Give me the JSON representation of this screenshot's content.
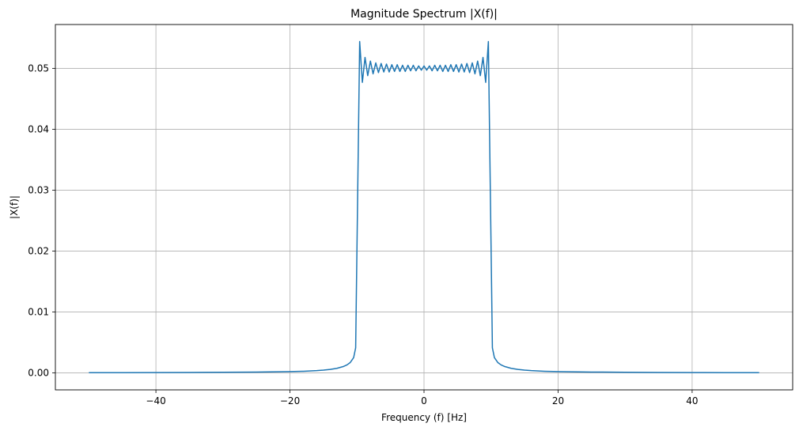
{
  "chart_data": {
    "type": "line",
    "title": "Magnitude Spectrum |X(f)|",
    "xlabel": "Frequency (f) [Hz]",
    "ylabel": "|X(f)|",
    "xlim": [
      -55,
      55
    ],
    "ylim": [
      -0.0028,
      0.0572
    ],
    "xticks": [
      -40,
      -20,
      0,
      20,
      40
    ],
    "xtick_labels": [
      "−40",
      "−20",
      "0",
      "20",
      "40"
    ],
    "yticks": [
      0.0,
      0.01,
      0.02,
      0.03,
      0.04,
      0.05
    ],
    "ytick_labels": [
      "0.00",
      "0.01",
      "0.02",
      "0.03",
      "0.04",
      "0.05"
    ],
    "grid": true,
    "series": [
      {
        "color": "#1f77b4",
        "x": [
          -50,
          -45,
          -40,
          -35,
          -30,
          -25,
          -20,
          -18,
          -16,
          -15,
          -14,
          -13,
          -12,
          -11.5,
          -11,
          -10.5,
          -10.2,
          -9.6,
          -9.2,
          -8.8,
          -8.4,
          -8.0,
          -7.6,
          -7.2,
          -6.8,
          -6.4,
          -6.0,
          -5.6,
          -5.2,
          -4.8,
          -4.4,
          -4.0,
          -3.6,
          -3.2,
          -2.8,
          -2.4,
          -2.0,
          -1.6,
          -1.2,
          -0.8,
          -0.4,
          0.0,
          0.4,
          0.8,
          1.2,
          1.6,
          2.0,
          2.4,
          2.8,
          3.2,
          3.6,
          4.0,
          4.4,
          4.8,
          5.2,
          5.6,
          6.0,
          6.4,
          6.8,
          7.2,
          7.6,
          8.0,
          8.4,
          8.8,
          9.2,
          9.6,
          10.2,
          10.5,
          11,
          11.5,
          12,
          13,
          14,
          15,
          16,
          18,
          20,
          25,
          30,
          35,
          40,
          45,
          50
        ],
        "y": [
          2e-05,
          3e-05,
          4e-05,
          6e-05,
          9e-05,
          0.00013,
          0.0002,
          0.00026,
          0.00036,
          0.00044,
          0.00056,
          0.00074,
          0.00105,
          0.0013,
          0.0017,
          0.0025,
          0.0041,
          0.0544,
          0.0477,
          0.0518,
          0.0488,
          0.0512,
          0.0491,
          0.0509,
          0.0493,
          0.0508,
          0.0494,
          0.0507,
          0.0494,
          0.0506,
          0.0495,
          0.0506,
          0.0495,
          0.0505,
          0.0495,
          0.0505,
          0.0496,
          0.0505,
          0.0496,
          0.0504,
          0.0497,
          0.0504,
          0.0497,
          0.0504,
          0.0496,
          0.0505,
          0.0496,
          0.0505,
          0.0495,
          0.0505,
          0.0495,
          0.0506,
          0.0495,
          0.0506,
          0.0494,
          0.0507,
          0.0494,
          0.0508,
          0.0493,
          0.0509,
          0.0491,
          0.0512,
          0.0488,
          0.0518,
          0.0477,
          0.0544,
          0.0041,
          0.0025,
          0.0017,
          0.0013,
          0.00105,
          0.00074,
          0.00056,
          0.00044,
          0.00036,
          0.00026,
          0.0002,
          0.00013,
          9e-05,
          6e-05,
          4e-05,
          3e-05,
          2e-05
        ]
      }
    ]
  }
}
